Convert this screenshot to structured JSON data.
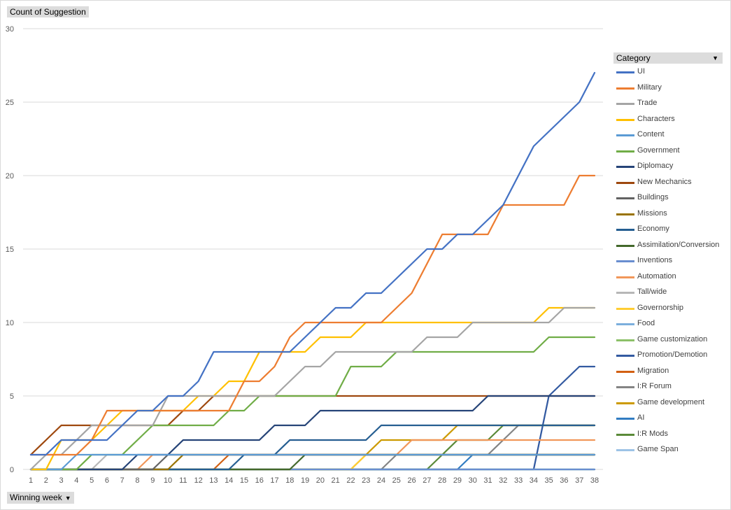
{
  "value_field": {
    "label": "Count of Suggestion"
  },
  "axis_field": {
    "label": "Winning week",
    "icon": "dropdown-arrow-icon"
  },
  "legend_field": {
    "label": "Category",
    "icon": "dropdown-arrow-icon"
  },
  "chart_data": {
    "type": "line",
    "title": "",
    "xlabel": "Winning week",
    "ylabel": "Count of Suggestion",
    "ylim": [
      0,
      30
    ],
    "yticks": [
      0,
      5,
      10,
      15,
      20,
      25,
      30
    ],
    "grid": true,
    "legend": "right",
    "x": [
      "1",
      "2",
      "3",
      "4",
      "5",
      "6",
      "7",
      "8",
      "9",
      "10",
      "11",
      "12",
      "13",
      "14",
      "15",
      "16",
      "17",
      "18",
      "19",
      "20",
      "21",
      "22",
      "23",
      "24",
      "25",
      "26",
      "27",
      "28",
      "29",
      "30",
      "31",
      "32",
      "33",
      "34",
      "35",
      "36",
      "37",
      "38"
    ],
    "series": [
      {
        "name": "UI",
        "color": "#4472c4",
        "values": [
          1,
          1,
          2,
          2,
          2,
          2,
          3,
          4,
          4,
          5,
          5,
          6,
          8,
          8,
          8,
          8,
          8,
          8,
          9,
          10,
          11,
          11,
          12,
          12,
          13,
          14,
          15,
          15,
          16,
          16,
          17,
          18,
          20,
          22,
          23,
          24,
          25,
          27
        ]
      },
      {
        "name": "Military",
        "color": "#ed7d31",
        "values": [
          1,
          1,
          1,
          1,
          2,
          4,
          4,
          4,
          4,
          4,
          4,
          4,
          4,
          4,
          6,
          6,
          7,
          9,
          10,
          10,
          10,
          10,
          10,
          10,
          11,
          12,
          14,
          16,
          16,
          16,
          16,
          18,
          18,
          18,
          18,
          18,
          20,
          20
        ]
      },
      {
        "name": "Trade",
        "color": "#a5a5a5",
        "values": [
          0,
          1,
          1,
          2,
          3,
          3,
          3,
          3,
          3,
          5,
          5,
          5,
          5,
          5,
          5,
          5,
          5,
          6,
          7,
          7,
          8,
          8,
          8,
          8,
          8,
          8,
          9,
          9,
          9,
          10,
          10,
          10,
          10,
          10,
          10,
          11,
          11,
          11
        ]
      },
      {
        "name": "Characters",
        "color": "#ffc000",
        "values": [
          0,
          0,
          2,
          2,
          2,
          3,
          4,
          4,
          4,
          4,
          4,
          5,
          5,
          6,
          6,
          8,
          8,
          8,
          8,
          9,
          9,
          9,
          10,
          10,
          10,
          10,
          10,
          10,
          10,
          10,
          10,
          10,
          10,
          10,
          11,
          11,
          11,
          11
        ]
      },
      {
        "name": "Content",
        "color": "#5b9bd5",
        "values": [
          0,
          0,
          0,
          1,
          1,
          1,
          1,
          1,
          1,
          1,
          1,
          1,
          1,
          1,
          1,
          1,
          1,
          1,
          1,
          1,
          1,
          1,
          1,
          1,
          1,
          1,
          1,
          1,
          1,
          1,
          1,
          1,
          1,
          1,
          1,
          1,
          1,
          1
        ]
      },
      {
        "name": "Government",
        "color": "#70ad47",
        "values": [
          0,
          0,
          0,
          0,
          1,
          1,
          1,
          2,
          3,
          3,
          3,
          3,
          3,
          4,
          4,
          5,
          5,
          5,
          5,
          5,
          5,
          7,
          7,
          7,
          8,
          8,
          8,
          8,
          8,
          8,
          8,
          8,
          8,
          8,
          9,
          9,
          9,
          9
        ]
      },
      {
        "name": "Diplomacy",
        "color": "#264478",
        "values": [
          0,
          0,
          0,
          0,
          0,
          0,
          0,
          1,
          1,
          1,
          2,
          2,
          2,
          2,
          2,
          2,
          3,
          3,
          3,
          4,
          4,
          4,
          4,
          4,
          4,
          4,
          4,
          4,
          4,
          4,
          5,
          5,
          5,
          5,
          5,
          5,
          5,
          5
        ]
      },
      {
        "name": "New Mechanics",
        "color": "#9e480e",
        "values": [
          1,
          2,
          3,
          3,
          3,
          3,
          3,
          3,
          3,
          3,
          4,
          4,
          5,
          5,
          5,
          5,
          5,
          5,
          5,
          5,
          5,
          5,
          5,
          5,
          5,
          5,
          5,
          5,
          5,
          5,
          5,
          5,
          5,
          5,
          5,
          5,
          5,
          5
        ]
      },
      {
        "name": "Buildings",
        "color": "#636363",
        "values": [
          0,
          0,
          0,
          0,
          0,
          0,
          0,
          0,
          0,
          1,
          1,
          1,
          1,
          1,
          1,
          1,
          1,
          1,
          1,
          1,
          1,
          1,
          1,
          1,
          1,
          1,
          1,
          1,
          1,
          1,
          1,
          1,
          1,
          1,
          1,
          1,
          1,
          1
        ]
      },
      {
        "name": "Missions",
        "color": "#997300",
        "values": [
          0,
          0,
          0,
          0,
          0,
          0,
          0,
          0,
          0,
          0,
          1,
          1,
          1,
          1,
          1,
          1,
          1,
          1,
          1,
          1,
          1,
          1,
          1,
          1,
          1,
          1,
          1,
          1,
          1,
          1,
          1,
          1,
          1,
          1,
          1,
          1,
          1,
          1
        ]
      },
      {
        "name": "Economy",
        "color": "#255e91",
        "values": [
          0,
          0,
          0,
          0,
          0,
          0,
          0,
          0,
          0,
          0,
          0,
          0,
          0,
          0,
          1,
          1,
          1,
          2,
          2,
          2,
          2,
          2,
          2,
          3,
          3,
          3,
          3,
          3,
          3,
          3,
          3,
          3,
          3,
          3,
          3,
          3,
          3,
          3
        ]
      },
      {
        "name": "Assimilation/Conversion",
        "color": "#43682b",
        "values": [
          0,
          0,
          0,
          0,
          0,
          0,
          0,
          0,
          0,
          0,
          0,
          0,
          0,
          0,
          0,
          0,
          0,
          0,
          1,
          1,
          1,
          1,
          1,
          1,
          1,
          1,
          1,
          1,
          1,
          1,
          1,
          1,
          1,
          1,
          1,
          1,
          1,
          1
        ]
      },
      {
        "name": "Inventions",
        "color": "#698ed0",
        "values": [
          0,
          0,
          0,
          0,
          0,
          0,
          0,
          0,
          0,
          0,
          0,
          0,
          0,
          0,
          0,
          0,
          0,
          0,
          0,
          0,
          0,
          0,
          0,
          0,
          0,
          0,
          0,
          0,
          0,
          0,
          0,
          0,
          0,
          0,
          0,
          0,
          0,
          0
        ]
      },
      {
        "name": "Automation",
        "color": "#f1975a",
        "values": [
          0,
          0,
          0,
          0,
          0,
          0,
          0,
          0,
          1,
          1,
          1,
          1,
          1,
          1,
          1,
          1,
          1,
          1,
          1,
          1,
          1,
          1,
          1,
          1,
          1,
          2,
          2,
          2,
          2,
          2,
          2,
          2,
          2,
          2,
          2,
          2,
          2,
          2
        ]
      },
      {
        "name": "Tall/wide",
        "color": "#b7b7b7",
        "values": [
          0,
          0,
          0,
          0,
          0,
          1,
          1,
          1,
          1,
          1,
          1,
          1,
          1,
          1,
          1,
          1,
          1,
          1,
          1,
          1,
          1,
          1,
          1,
          1,
          1,
          1,
          1,
          1,
          1,
          1,
          1,
          1,
          1,
          1,
          1,
          1,
          1,
          1
        ]
      },
      {
        "name": "Governorship",
        "color": "#ffcd33",
        "values": [
          0,
          0,
          0,
          0,
          0,
          0,
          0,
          0,
          0,
          0,
          0,
          0,
          0,
          0,
          0,
          0,
          0,
          0,
          0,
          0,
          0,
          0,
          1,
          1,
          1,
          1,
          1,
          1,
          1,
          1,
          1,
          1,
          1,
          1,
          1,
          1,
          1,
          1
        ]
      },
      {
        "name": "Food",
        "color": "#7cafdd",
        "values": [
          0,
          0,
          0,
          0,
          0,
          0,
          0,
          0,
          0,
          0,
          0,
          0,
          0,
          0,
          0,
          0,
          0,
          0,
          0,
          0,
          0,
          0,
          0,
          0,
          0,
          0,
          0,
          0,
          0,
          0,
          0,
          0,
          0,
          0,
          0,
          0,
          0,
          0
        ]
      },
      {
        "name": "Game customization",
        "color": "#8cc168",
        "values": [
          0,
          0,
          0,
          0,
          0,
          0,
          0,
          0,
          0,
          0,
          0,
          0,
          0,
          0,
          0,
          0,
          0,
          0,
          0,
          0,
          0,
          0,
          0,
          0,
          0,
          0,
          0,
          0,
          0,
          0,
          0,
          0,
          0,
          0,
          0,
          0,
          0,
          0
        ]
      },
      {
        "name": "Promotion/Demotion",
        "color": "#335aa1",
        "values": [
          0,
          0,
          0,
          0,
          0,
          0,
          0,
          0,
          0,
          0,
          0,
          0,
          0,
          0,
          0,
          0,
          0,
          0,
          0,
          0,
          0,
          0,
          0,
          0,
          0,
          0,
          0,
          0,
          0,
          0,
          0,
          0,
          0,
          0,
          5,
          6,
          7,
          7
        ]
      },
      {
        "name": "Migration",
        "color": "#d26012",
        "values": [
          0,
          0,
          0,
          0,
          0,
          0,
          0,
          0,
          0,
          0,
          0,
          0,
          0,
          1,
          1,
          1,
          1,
          1,
          1,
          1,
          1,
          1,
          1,
          1,
          1,
          1,
          1,
          1,
          1,
          1,
          1,
          1,
          1,
          1,
          1,
          1,
          1,
          1
        ]
      },
      {
        "name": "I:R Forum",
        "color": "#848484",
        "values": [
          0,
          0,
          0,
          0,
          0,
          0,
          0,
          0,
          0,
          0,
          0,
          0,
          0,
          0,
          0,
          0,
          0,
          0,
          0,
          0,
          0,
          0,
          0,
          0,
          1,
          1,
          1,
          1,
          1,
          1,
          1,
          2,
          3,
          3,
          3,
          3,
          3,
          3
        ]
      },
      {
        "name": "Game development",
        "color": "#cc9a00",
        "values": [
          0,
          0,
          0,
          0,
          0,
          0,
          0,
          0,
          0,
          0,
          0,
          0,
          0,
          0,
          0,
          0,
          0,
          0,
          0,
          0,
          0,
          0,
          1,
          2,
          2,
          2,
          2,
          2,
          3,
          3,
          3,
          3,
          3,
          3,
          3,
          3,
          3,
          3
        ]
      },
      {
        "name": "AI",
        "color": "#327dc2",
        "values": [
          0,
          0,
          0,
          0,
          0,
          0,
          0,
          0,
          0,
          0,
          0,
          0,
          0,
          0,
          0,
          0,
          0,
          0,
          0,
          0,
          0,
          0,
          0,
          0,
          0,
          0,
          0,
          0,
          0,
          1,
          1,
          1,
          1,
          1,
          1,
          1,
          1,
          1
        ]
      },
      {
        "name": "I:R Mods",
        "color": "#5a8a39",
        "values": [
          0,
          0,
          0,
          0,
          0,
          0,
          0,
          0,
          0,
          0,
          0,
          0,
          0,
          0,
          0,
          0,
          0,
          0,
          0,
          0,
          0,
          0,
          0,
          0,
          0,
          0,
          0,
          1,
          2,
          2,
          2,
          3,
          3,
          3,
          3,
          3,
          3,
          3
        ]
      },
      {
        "name": "Game Span",
        "color": "#9dc3e6",
        "values": [
          0,
          0,
          0,
          0,
          0,
          0,
          0,
          0,
          0,
          0,
          0,
          0,
          0,
          0,
          0,
          0,
          0,
          0,
          0,
          0,
          0,
          0,
          0,
          0,
          0,
          0,
          0,
          0,
          0,
          0,
          0,
          0,
          0,
          0,
          0,
          0,
          0,
          0
        ]
      }
    ]
  }
}
